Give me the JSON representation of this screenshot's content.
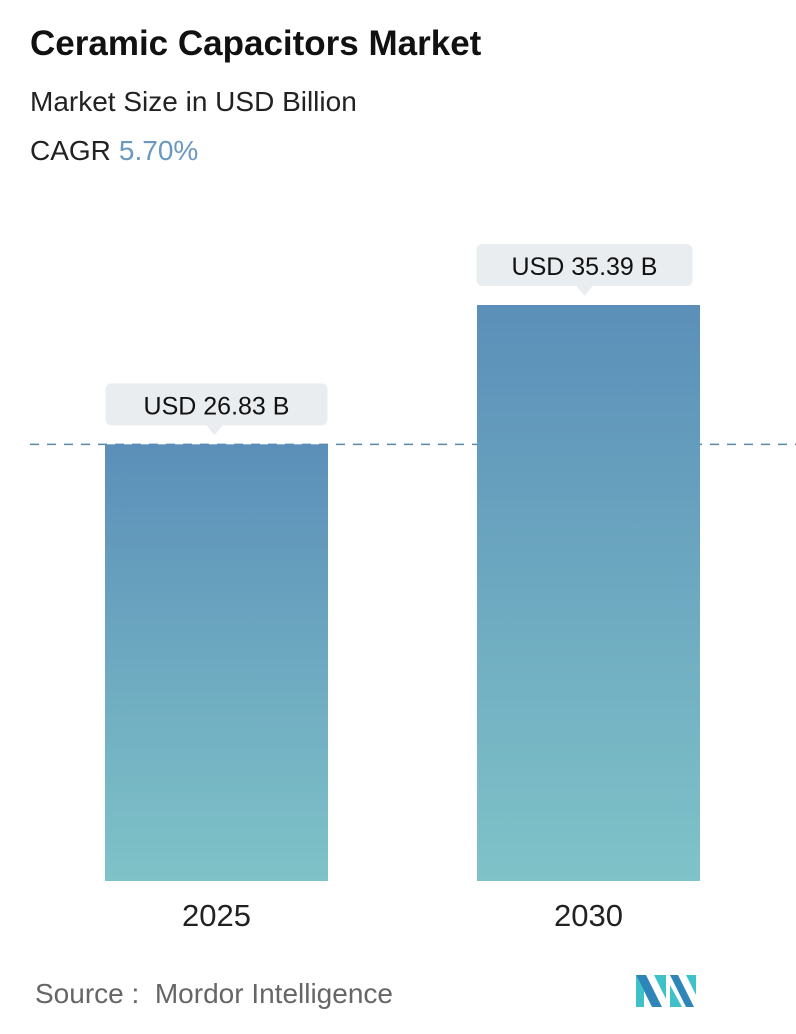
{
  "header": {
    "title": "Ceramic Capacitors Market",
    "subtitle": "Market Size in USD Billion",
    "cagr_label": "CAGR",
    "cagr_value": "5.70%"
  },
  "chart_data": {
    "type": "bar",
    "categories": [
      "2025",
      "2030"
    ],
    "values": [
      26.83,
      35.39
    ],
    "data_labels": [
      "USD 26.83 B",
      "USD 35.39 B"
    ],
    "ylim": [
      0,
      35.39
    ],
    "grid": false,
    "reference_line": {
      "value": 26.83,
      "style": "dashed"
    },
    "colors": {
      "bar_top": "#5b8fb9",
      "bar_bottom": "#7fc3c8",
      "label_bg": "#e9edf0",
      "reference_line": "#5a88a8"
    }
  },
  "footer": {
    "source_label": "Source :",
    "source_name": "Mordor Intelligence",
    "logo_text": "MI"
  }
}
